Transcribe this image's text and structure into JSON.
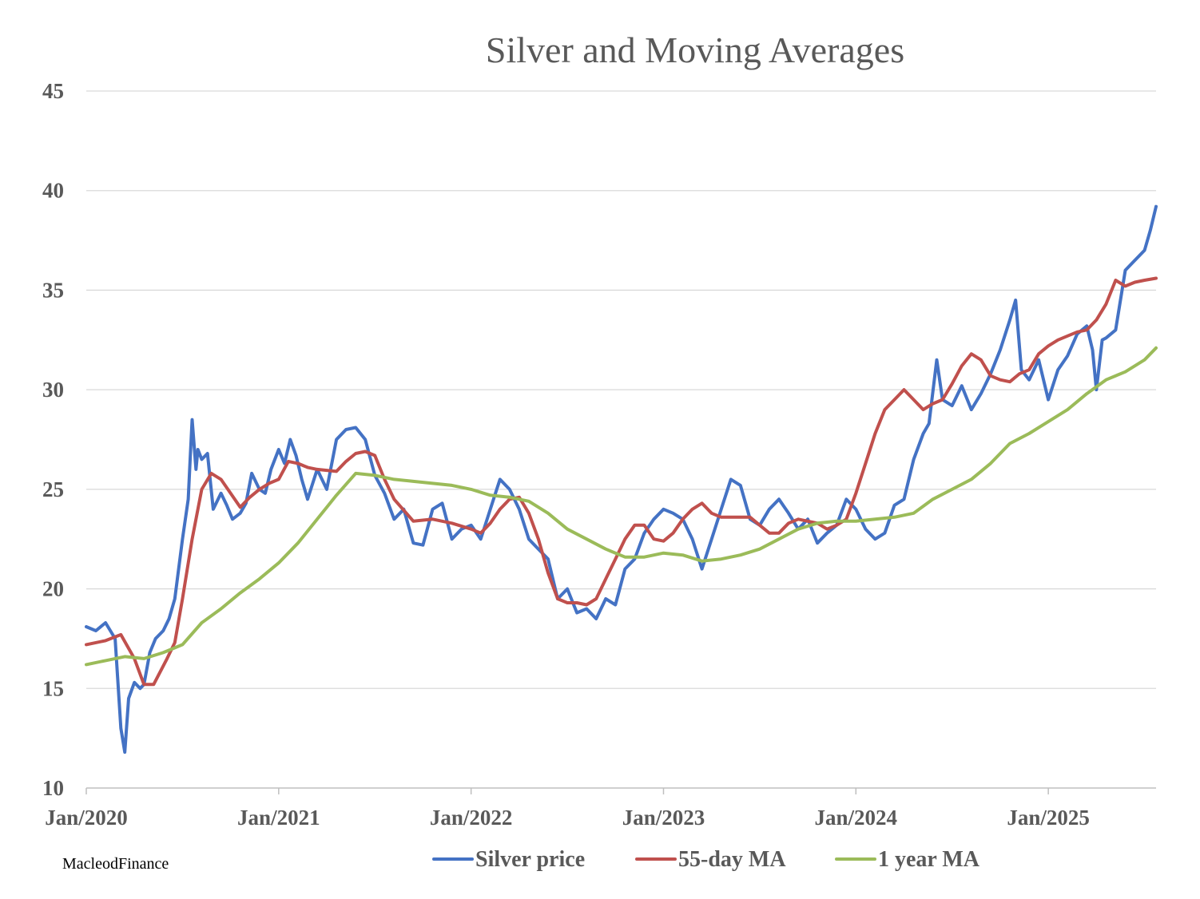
{
  "credit": "MacleodFinance",
  "chart_data": {
    "type": "line",
    "title": "Silver and Moving Averages",
    "xlabel": "",
    "ylabel": "",
    "ylim": [
      10,
      45
    ],
    "yticks": [
      "10",
      "15",
      "20",
      "25",
      "30",
      "35",
      "40",
      "45"
    ],
    "xtick_labels": [
      "Jan/2020",
      "Jan/2021",
      "Jan/2022",
      "Jan/2023",
      "Jan/2024",
      "Jan/2025"
    ],
    "xlim": [
      2020.0,
      2025.56
    ],
    "grid": true,
    "legend_position": "bottom",
    "colors": {
      "silver": "#4472C4",
      "ma55": "#C0504D",
      "ma1y": "#9BBB59",
      "grid": "#D9D9D9",
      "text": "#595959"
    },
    "series": [
      {
        "name": "Silver price",
        "color": "#4472C4",
        "x": [
          2020.0,
          2020.05,
          2020.1,
          2020.15,
          2020.18,
          2020.2,
          2020.22,
          2020.25,
          2020.28,
          2020.3,
          2020.33,
          2020.36,
          2020.4,
          2020.43,
          2020.46,
          2020.5,
          2020.53,
          2020.54,
          2020.55,
          2020.57,
          2020.58,
          2020.6,
          2020.63,
          2020.66,
          2020.7,
          2020.73,
          2020.76,
          2020.8,
          2020.83,
          2020.86,
          2020.9,
          2020.93,
          2020.96,
          2021.0,
          2021.03,
          2021.06,
          2021.09,
          2021.12,
          2021.15,
          2021.2,
          2021.25,
          2021.3,
          2021.35,
          2021.4,
          2021.45,
          2021.5,
          2021.55,
          2021.6,
          2021.65,
          2021.7,
          2021.75,
          2021.8,
          2021.85,
          2021.9,
          2021.95,
          2022.0,
          2022.05,
          2022.1,
          2022.15,
          2022.2,
          2022.25,
          2022.3,
          2022.35,
          2022.4,
          2022.45,
          2022.5,
          2022.55,
          2022.6,
          2022.65,
          2022.7,
          2022.75,
          2022.8,
          2022.85,
          2022.9,
          2022.95,
          2023.0,
          2023.05,
          2023.1,
          2023.15,
          2023.2,
          2023.25,
          2023.3,
          2023.35,
          2023.4,
          2023.45,
          2023.5,
          2023.55,
          2023.6,
          2023.65,
          2023.7,
          2023.75,
          2023.8,
          2023.85,
          2023.9,
          2023.95,
          2024.0,
          2024.05,
          2024.1,
          2024.15,
          2024.2,
          2024.25,
          2024.3,
          2024.35,
          2024.38,
          2024.42,
          2024.45,
          2024.5,
          2024.55,
          2024.6,
          2024.65,
          2024.7,
          2024.75,
          2024.8,
          2024.83,
          2024.86,
          2024.9,
          2024.95,
          2025.0,
          2025.05,
          2025.1,
          2025.15,
          2025.2,
          2025.23,
          2025.25,
          2025.28,
          2025.3,
          2025.35,
          2025.4,
          2025.45,
          2025.5,
          2025.53,
          2025.56
        ],
        "y": [
          18.1,
          17.9,
          18.3,
          17.5,
          13.0,
          11.8,
          14.5,
          15.3,
          15.0,
          15.2,
          16.8,
          17.5,
          17.9,
          18.5,
          19.5,
          22.5,
          24.5,
          26.5,
          28.5,
          26.0,
          27.0,
          26.5,
          26.8,
          24.0,
          24.8,
          24.2,
          23.5,
          23.8,
          24.3,
          25.8,
          25.0,
          24.8,
          26.0,
          27.0,
          26.3,
          27.5,
          26.7,
          25.5,
          24.5,
          26.0,
          25.0,
          27.5,
          28.0,
          28.1,
          27.5,
          25.7,
          24.8,
          23.5,
          24.0,
          22.3,
          22.2,
          24.0,
          24.3,
          22.5,
          23.0,
          23.2,
          22.5,
          24.0,
          25.5,
          25.0,
          24.0,
          22.5,
          22.0,
          21.5,
          19.5,
          20.0,
          18.8,
          19.0,
          18.5,
          19.5,
          19.2,
          21.0,
          21.5,
          22.8,
          23.5,
          24.0,
          23.8,
          23.5,
          22.5,
          21.0,
          22.5,
          24.0,
          25.5,
          25.2,
          23.5,
          23.2,
          24.0,
          24.5,
          23.8,
          23.0,
          23.5,
          22.3,
          22.8,
          23.2,
          24.5,
          24.0,
          23.0,
          22.5,
          22.8,
          24.2,
          24.5,
          26.5,
          27.8,
          28.3,
          31.5,
          29.5,
          29.2,
          30.2,
          29.0,
          29.8,
          30.8,
          32.0,
          33.5,
          34.5,
          31.0,
          30.5,
          31.5,
          29.5,
          31.0,
          31.7,
          32.8,
          33.2,
          32.0,
          30.0,
          32.5,
          32.6,
          33.0,
          36.0,
          36.5,
          37.0,
          38.0,
          39.2
        ]
      },
      {
        "name": "55-day MA",
        "color": "#C0504D",
        "x": [
          2020.0,
          2020.1,
          2020.18,
          2020.25,
          2020.3,
          2020.35,
          2020.42,
          2020.46,
          2020.5,
          2020.55,
          2020.6,
          2020.65,
          2020.7,
          2020.75,
          2020.8,
          2020.85,
          2020.9,
          2020.95,
          2021.0,
          2021.05,
          2021.1,
          2021.15,
          2021.2,
          2021.3,
          2021.35,
          2021.4,
          2021.45,
          2021.5,
          2021.55,
          2021.6,
          2021.7,
          2021.8,
          2021.9,
          2022.0,
          2022.05,
          2022.1,
          2022.15,
          2022.2,
          2022.25,
          2022.3,
          2022.35,
          2022.4,
          2022.45,
          2022.5,
          2022.55,
          2022.6,
          2022.65,
          2022.7,
          2022.75,
          2022.8,
          2022.85,
          2022.9,
          2022.95,
          2023.0,
          2023.05,
          2023.1,
          2023.15,
          2023.2,
          2023.25,
          2023.3,
          2023.35,
          2023.4,
          2023.45,
          2023.5,
          2023.55,
          2023.6,
          2023.65,
          2023.7,
          2023.75,
          2023.8,
          2023.85,
          2023.9,
          2023.95,
          2024.0,
          2024.05,
          2024.1,
          2024.15,
          2024.2,
          2024.25,
          2024.3,
          2024.35,
          2024.4,
          2024.45,
          2024.5,
          2024.55,
          2024.6,
          2024.65,
          2024.7,
          2024.75,
          2024.8,
          2024.85,
          2024.9,
          2024.95,
          2025.0,
          2025.05,
          2025.1,
          2025.15,
          2025.2,
          2025.25,
          2025.3,
          2025.35,
          2025.4,
          2025.45,
          2025.5,
          2025.56
        ],
        "y": [
          17.2,
          17.4,
          17.7,
          16.5,
          15.2,
          15.2,
          16.5,
          17.3,
          19.5,
          22.5,
          25.0,
          25.8,
          25.5,
          24.8,
          24.1,
          24.6,
          25.0,
          25.3,
          25.5,
          26.4,
          26.3,
          26.1,
          26.0,
          25.9,
          26.4,
          26.8,
          26.9,
          26.7,
          25.5,
          24.5,
          23.4,
          23.5,
          23.3,
          23.0,
          22.8,
          23.3,
          24.0,
          24.5,
          24.6,
          23.8,
          22.5,
          20.8,
          19.5,
          19.3,
          19.3,
          19.2,
          19.5,
          20.5,
          21.5,
          22.5,
          23.2,
          23.2,
          22.5,
          22.4,
          22.8,
          23.5,
          24.0,
          24.3,
          23.8,
          23.6,
          23.6,
          23.6,
          23.6,
          23.2,
          22.8,
          22.8,
          23.3,
          23.5,
          23.4,
          23.3,
          23.0,
          23.2,
          23.5,
          24.8,
          26.3,
          27.8,
          29.0,
          29.5,
          30.0,
          29.5,
          29.0,
          29.3,
          29.5,
          30.3,
          31.2,
          31.8,
          31.5,
          30.7,
          30.5,
          30.4,
          30.8,
          31.0,
          31.8,
          32.2,
          32.5,
          32.7,
          32.9,
          33.0,
          33.5,
          34.3,
          35.5,
          35.2,
          35.4,
          35.5,
          35.6
        ]
      },
      {
        "name": "1 year MA",
        "color": "#9BBB59",
        "x": [
          2020.0,
          2020.1,
          2020.2,
          2020.3,
          2020.4,
          2020.5,
          2020.6,
          2020.7,
          2020.8,
          2020.9,
          2021.0,
          2021.1,
          2021.2,
          2021.3,
          2021.4,
          2021.5,
          2021.55,
          2021.6,
          2021.7,
          2021.8,
          2021.9,
          2022.0,
          2022.1,
          2022.2,
          2022.3,
          2022.4,
          2022.5,
          2022.6,
          2022.7,
          2022.8,
          2022.9,
          2023.0,
          2023.1,
          2023.2,
          2023.3,
          2023.4,
          2023.5,
          2023.6,
          2023.7,
          2023.8,
          2023.9,
          2024.0,
          2024.1,
          2024.2,
          2024.3,
          2024.4,
          2024.5,
          2024.6,
          2024.7,
          2024.8,
          2024.9,
          2025.0,
          2025.1,
          2025.2,
          2025.3,
          2025.4,
          2025.5,
          2025.56
        ],
        "y": [
          16.2,
          16.4,
          16.6,
          16.5,
          16.8,
          17.2,
          18.3,
          19.0,
          19.8,
          20.5,
          21.3,
          22.3,
          23.5,
          24.7,
          25.8,
          25.7,
          25.6,
          25.5,
          25.4,
          25.3,
          25.2,
          25.0,
          24.7,
          24.6,
          24.4,
          23.8,
          23.0,
          22.5,
          22.0,
          21.6,
          21.6,
          21.8,
          21.7,
          21.4,
          21.5,
          21.7,
          22.0,
          22.5,
          23.0,
          23.3,
          23.4,
          23.4,
          23.5,
          23.6,
          23.8,
          24.5,
          25.0,
          25.5,
          26.3,
          27.3,
          27.8,
          28.4,
          29.0,
          29.8,
          30.5,
          30.9,
          31.5,
          32.1
        ]
      }
    ]
  }
}
